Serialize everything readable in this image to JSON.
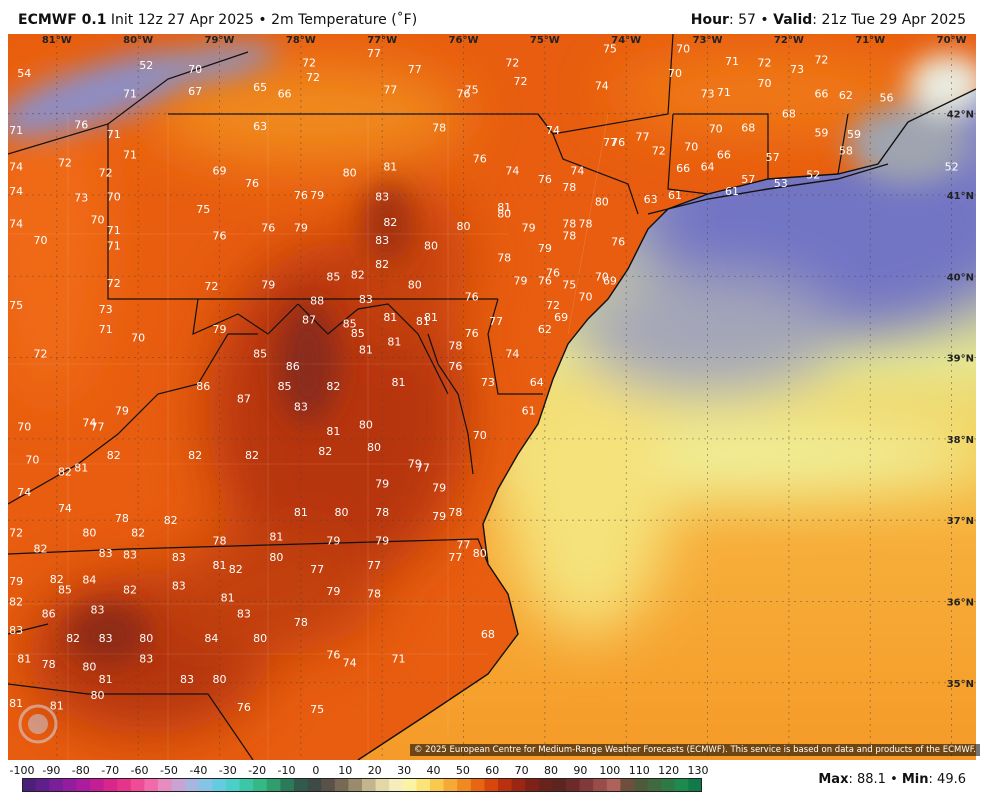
{
  "header": {
    "model": "ECMWF 0.1",
    "init": " Init 12z 27 Apr 2025",
    "product": "2m Temperature (˚F)",
    "hour_label": "Hour",
    "hour_value": "57",
    "valid_label": "Valid",
    "valid_value": "21z Tue 29 Apr 2025"
  },
  "lon_labels": [
    "81°W",
    "80°W",
    "79°W",
    "78°W",
    "77°W",
    "76°W",
    "75°W",
    "74°W",
    "73°W",
    "72°W",
    "71°W",
    "70°W"
  ],
  "lat_labels": [
    "42°N",
    "41°N",
    "40°N",
    "39°N",
    "38°N",
    "37°N",
    "36°N",
    "35°N"
  ],
  "temperatures": [
    {
      "v": 54,
      "lon": -81.4,
      "lat": 42.45
    },
    {
      "v": 52,
      "lon": -79.9,
      "lat": 42.55
    },
    {
      "v": 71,
      "lon": -80.1,
      "lat": 42.2
    },
    {
      "v": 70,
      "lon": -79.3,
      "lat": 42.5
    },
    {
      "v": 67,
      "lon": -79.3,
      "lat": 42.23
    },
    {
      "v": 65,
      "lon": -78.5,
      "lat": 42.28
    },
    {
      "v": 66,
      "lon": -78.2,
      "lat": 42.2
    },
    {
      "v": 72,
      "lon": -77.9,
      "lat": 42.58
    },
    {
      "v": 72,
      "lon": -77.85,
      "lat": 42.4
    },
    {
      "v": 77,
      "lon": -77.1,
      "lat": 42.7
    },
    {
      "v": 77,
      "lon": -76.6,
      "lat": 42.5
    },
    {
      "v": 77,
      "lon": -76.9,
      "lat": 42.25
    },
    {
      "v": 76,
      "lon": -76.0,
      "lat": 42.2
    },
    {
      "v": 75,
      "lon": -75.9,
      "lat": 42.25
    },
    {
      "v": 72,
      "lon": -75.4,
      "lat": 42.58
    },
    {
      "v": 72,
      "lon": -75.3,
      "lat": 42.35
    },
    {
      "v": 75,
      "lon": -74.2,
      "lat": 42.75
    },
    {
      "v": 74,
      "lon": -74.3,
      "lat": 42.3
    },
    {
      "v": 70,
      "lon": -73.3,
      "lat": 42.75
    },
    {
      "v": 70,
      "lon": -73.4,
      "lat": 42.45
    },
    {
      "v": 71,
      "lon": -72.7,
      "lat": 42.6
    },
    {
      "v": 72,
      "lon": -72.3,
      "lat": 42.58
    },
    {
      "v": 73,
      "lon": -71.9,
      "lat": 42.5
    },
    {
      "v": 72,
      "lon": -71.6,
      "lat": 42.62
    },
    {
      "v": 73,
      "lon": -73.0,
      "lat": 42.2
    },
    {
      "v": 71,
      "lon": -72.8,
      "lat": 42.22
    },
    {
      "v": 70,
      "lon": -72.3,
      "lat": 42.33
    },
    {
      "v": 66,
      "lon": -71.6,
      "lat": 42.2
    },
    {
      "v": 62,
      "lon": -71.3,
      "lat": 42.18
    },
    {
      "v": 56,
      "lon": -70.8,
      "lat": 42.15
    },
    {
      "v": 76,
      "lon": -80.7,
      "lat": 41.82
    },
    {
      "v": 71,
      "lon": -81.5,
      "lat": 41.75
    },
    {
      "v": 71,
      "lon": -80.3,
      "lat": 41.7
    },
    {
      "v": 63,
      "lon": -78.5,
      "lat": 41.8
    },
    {
      "v": 78,
      "lon": -76.3,
      "lat": 41.78
    },
    {
      "v": 74,
      "lon": -74.9,
      "lat": 41.75
    },
    {
      "v": 77,
      "lon": -74.2,
      "lat": 41.6
    },
    {
      "v": 76,
      "lon": -74.1,
      "lat": 41.6
    },
    {
      "v": 77,
      "lon": -73.8,
      "lat": 41.67
    },
    {
      "v": 70,
      "lon": -72.9,
      "lat": 41.77
    },
    {
      "v": 68,
      "lon": -72.5,
      "lat": 41.78
    },
    {
      "v": 68,
      "lon": -72.0,
      "lat": 41.95
    },
    {
      "v": 59,
      "lon": -71.6,
      "lat": 41.72
    },
    {
      "v": 59,
      "lon": -71.2,
      "lat": 41.7
    },
    {
      "v": 72,
      "lon": -73.6,
      "lat": 41.5
    },
    {
      "v": 70,
      "lon": -73.2,
      "lat": 41.55
    },
    {
      "v": 66,
      "lon": -72.8,
      "lat": 41.45
    },
    {
      "v": 57,
      "lon": -72.2,
      "lat": 41.42
    },
    {
      "v": 58,
      "lon": -71.3,
      "lat": 41.5
    },
    {
      "v": 52,
      "lon": -70.0,
      "lat": 41.3
    },
    {
      "v": 74,
      "lon": -81.5,
      "lat": 41.3
    },
    {
      "v": 72,
      "lon": -80.9,
      "lat": 41.35
    },
    {
      "v": 72,
      "lon": -80.4,
      "lat": 41.23
    },
    {
      "v": 71,
      "lon": -80.1,
      "lat": 41.45
    },
    {
      "v": 69,
      "lon": -79.0,
      "lat": 41.25
    },
    {
      "v": 80,
      "lon": -77.4,
      "lat": 41.23
    },
    {
      "v": 81,
      "lon": -76.9,
      "lat": 41.3
    },
    {
      "v": 76,
      "lon": -75.8,
      "lat": 41.4
    },
    {
      "v": 74,
      "lon": -75.4,
      "lat": 41.25
    },
    {
      "v": 74,
      "lon": -74.6,
      "lat": 41.25
    },
    {
      "v": 76,
      "lon": -75.0,
      "lat": 41.15
    },
    {
      "v": 66,
      "lon": -73.3,
      "lat": 41.28
    },
    {
      "v": 64,
      "lon": -73.0,
      "lat": 41.3
    },
    {
      "v": 57,
      "lon": -72.5,
      "lat": 41.15
    },
    {
      "v": 53,
      "lon": -72.1,
      "lat": 41.1
    },
    {
      "v": 52,
      "lon": -71.7,
      "lat": 41.2
    },
    {
      "v": 74,
      "lon": -81.5,
      "lat": 41.0
    },
    {
      "v": 73,
      "lon": -80.7,
      "lat": 40.92
    },
    {
      "v": 70,
      "lon": -80.3,
      "lat": 40.93
    },
    {
      "v": 76,
      "lon": -78.6,
      "lat": 41.1
    },
    {
      "v": 76,
      "lon": -78.0,
      "lat": 40.95
    },
    {
      "v": 79,
      "lon": -77.8,
      "lat": 40.95
    },
    {
      "v": 83,
      "lon": -77.0,
      "lat": 40.93
    },
    {
      "v": 78,
      "lon": -74.7,
      "lat": 41.05
    },
    {
      "v": 80,
      "lon": -74.3,
      "lat": 40.87
    },
    {
      "v": 81,
      "lon": -75.5,
      "lat": 40.8
    },
    {
      "v": 80,
      "lon": -75.5,
      "lat": 40.72
    },
    {
      "v": 63,
      "lon": -73.7,
      "lat": 40.9
    },
    {
      "v": 61,
      "lon": -73.4,
      "lat": 40.95
    },
    {
      "v": 61,
      "lon": -72.7,
      "lat": 41.0
    },
    {
      "v": 75,
      "lon": -79.2,
      "lat": 40.78
    },
    {
      "v": 74,
      "lon": -81.5,
      "lat": 40.6
    },
    {
      "v": 70,
      "lon": -80.5,
      "lat": 40.65
    },
    {
      "v": 71,
      "lon": -80.3,
      "lat": 40.52
    },
    {
      "v": 76,
      "lon": -78.4,
      "lat": 40.55
    },
    {
      "v": 79,
      "lon": -78.0,
      "lat": 40.55
    },
    {
      "v": 82,
      "lon": -76.9,
      "lat": 40.62
    },
    {
      "v": 80,
      "lon": -76.0,
      "lat": 40.57
    },
    {
      "v": 79,
      "lon": -75.2,
      "lat": 40.55
    },
    {
      "v": 78,
      "lon": -74.7,
      "lat": 40.6
    },
    {
      "v": 78,
      "lon": -74.5,
      "lat": 40.6
    },
    {
      "v": 70,
      "lon": -81.2,
      "lat": 40.4
    },
    {
      "v": 71,
      "lon": -80.3,
      "lat": 40.33
    },
    {
      "v": 76,
      "lon": -79.0,
      "lat": 40.45
    },
    {
      "v": 83,
      "lon": -77.0,
      "lat": 40.4
    },
    {
      "v": 80,
      "lon": -76.4,
      "lat": 40.33
    },
    {
      "v": 78,
      "lon": -75.5,
      "lat": 40.18
    },
    {
      "v": 79,
      "lon": -75.0,
      "lat": 40.3
    },
    {
      "v": 78,
      "lon": -74.7,
      "lat": 40.45
    },
    {
      "v": 76,
      "lon": -74.1,
      "lat": 40.38
    },
    {
      "v": 76,
      "lon": -74.9,
      "lat": 40.0
    },
    {
      "v": 82,
      "lon": -77.0,
      "lat": 40.1
    },
    {
      "v": 85,
      "lon": -77.6,
      "lat": 39.95
    },
    {
      "v": 82,
      "lon": -77.3,
      "lat": 39.97
    },
    {
      "v": 79,
      "lon": -75.3,
      "lat": 39.9
    },
    {
      "v": 76,
      "lon": -75.0,
      "lat": 39.9
    },
    {
      "v": 75,
      "lon": -74.7,
      "lat": 39.85
    },
    {
      "v": 70,
      "lon": -74.3,
      "lat": 39.95
    },
    {
      "v": 69,
      "lon": -74.2,
      "lat": 39.9
    },
    {
      "v": 72,
      "lon": -80.3,
      "lat": 39.87
    },
    {
      "v": 72,
      "lon": -79.1,
      "lat": 39.83
    },
    {
      "v": 79,
      "lon": -78.4,
      "lat": 39.85
    },
    {
      "v": 80,
      "lon": -76.6,
      "lat": 39.85
    },
    {
      "v": 75,
      "lon": -81.5,
      "lat": 39.6
    },
    {
      "v": 73,
      "lon": -80.4,
      "lat": 39.55
    },
    {
      "v": 88,
      "lon": -77.8,
      "lat": 39.65
    },
    {
      "v": 83,
      "lon": -77.2,
      "lat": 39.67
    },
    {
      "v": 76,
      "lon": -75.9,
      "lat": 39.7
    },
    {
      "v": 72,
      "lon": -74.9,
      "lat": 39.6
    },
    {
      "v": 70,
      "lon": -74.5,
      "lat": 39.7
    },
    {
      "v": 87,
      "lon": -77.9,
      "lat": 39.42
    },
    {
      "v": 85,
      "lon": -77.4,
      "lat": 39.37
    },
    {
      "v": 85,
      "lon": -77.3,
      "lat": 39.25
    },
    {
      "v": 81,
      "lon": -76.9,
      "lat": 39.45
    },
    {
      "v": 81,
      "lon": -76.5,
      "lat": 39.4
    },
    {
      "v": 81,
      "lon": -76.4,
      "lat": 39.45
    },
    {
      "v": 77,
      "lon": -75.6,
      "lat": 39.4
    },
    {
      "v": 69,
      "lon": -74.8,
      "lat": 39.45
    },
    {
      "v": 62,
      "lon": -75.0,
      "lat": 39.3
    },
    {
      "v": 71,
      "lon": -80.4,
      "lat": 39.3
    },
    {
      "v": 70,
      "lon": -80.0,
      "lat": 39.2
    },
    {
      "v": 79,
      "lon": -79.0,
      "lat": 39.3
    },
    {
      "v": 76,
      "lon": -75.9,
      "lat": 39.25
    },
    {
      "v": 78,
      "lon": -76.1,
      "lat": 39.1
    },
    {
      "v": 81,
      "lon": -76.85,
      "lat": 39.15
    },
    {
      "v": 81,
      "lon": -77.2,
      "lat": 39.05
    },
    {
      "v": 72,
      "lon": -81.2,
      "lat": 39.0
    },
    {
      "v": 85,
      "lon": -78.5,
      "lat": 39.0
    },
    {
      "v": 86,
      "lon": -78.1,
      "lat": 38.85
    },
    {
      "v": 76,
      "lon": -76.1,
      "lat": 38.85
    },
    {
      "v": 74,
      "lon": -75.4,
      "lat": 39.0
    },
    {
      "v": 86,
      "lon": -79.2,
      "lat": 38.6
    },
    {
      "v": 85,
      "lon": -78.2,
      "lat": 38.6
    },
    {
      "v": 82,
      "lon": -77.6,
      "lat": 38.6
    },
    {
      "v": 81,
      "lon": -76.8,
      "lat": 38.65
    },
    {
      "v": 73,
      "lon": -75.7,
      "lat": 38.65
    },
    {
      "v": 64,
      "lon": -75.1,
      "lat": 38.65
    },
    {
      "v": 87,
      "lon": -78.7,
      "lat": 38.45
    },
    {
      "v": 83,
      "lon": -78.0,
      "lat": 38.35
    },
    {
      "v": 79,
      "lon": -80.2,
      "lat": 38.3
    },
    {
      "v": 61,
      "lon": -75.2,
      "lat": 38.3
    },
    {
      "v": 70,
      "lon": -81.4,
      "lat": 38.1
    },
    {
      "v": 74,
      "lon": -80.6,
      "lat": 38.15
    },
    {
      "v": 77,
      "lon": -80.5,
      "lat": 38.1
    },
    {
      "v": 81,
      "lon": -77.6,
      "lat": 38.05
    },
    {
      "v": 80,
      "lon": -77.2,
      "lat": 38.13
    },
    {
      "v": 70,
      "lon": -75.8,
      "lat": 38.0
    },
    {
      "v": 82,
      "lon": -80.3,
      "lat": 37.75
    },
    {
      "v": 82,
      "lon": -79.3,
      "lat": 37.75
    },
    {
      "v": 82,
      "lon": -78.6,
      "lat": 37.75
    },
    {
      "v": 82,
      "lon": -77.7,
      "lat": 37.8
    },
    {
      "v": 80,
      "lon": -77.1,
      "lat": 37.85
    },
    {
      "v": 79,
      "lon": -76.6,
      "lat": 37.65
    },
    {
      "v": 77,
      "lon": -76.5,
      "lat": 37.6
    },
    {
      "v": 70,
      "lon": -81.3,
      "lat": 37.7
    },
    {
      "v": 82,
      "lon": -80.9,
      "lat": 37.55
    },
    {
      "v": 81,
      "lon": -80.7,
      "lat": 37.6
    },
    {
      "v": 79,
      "lon": -77.0,
      "lat": 37.4
    },
    {
      "v": 79,
      "lon": -76.3,
      "lat": 37.35
    },
    {
      "v": 74,
      "lon": -81.4,
      "lat": 37.3
    },
    {
      "v": 74,
      "lon": -80.9,
      "lat": 37.1
    },
    {
      "v": 81,
      "lon": -78.0,
      "lat": 37.05
    },
    {
      "v": 80,
      "lon": -77.5,
      "lat": 37.05
    },
    {
      "v": 78,
      "lon": -77.0,
      "lat": 37.05
    },
    {
      "v": 79,
      "lon": -76.3,
      "lat": 37.0
    },
    {
      "v": 78,
      "lon": -76.1,
      "lat": 37.05
    },
    {
      "v": 78,
      "lon": -80.2,
      "lat": 36.98
    },
    {
      "v": 82,
      "lon": -79.6,
      "lat": 36.95
    },
    {
      "v": 72,
      "lon": -81.5,
      "lat": 36.8
    },
    {
      "v": 80,
      "lon": -80.6,
      "lat": 36.8
    },
    {
      "v": 82,
      "lon": -80.0,
      "lat": 36.8
    },
    {
      "v": 78,
      "lon": -79.0,
      "lat": 36.7
    },
    {
      "v": 81,
      "lon": -78.3,
      "lat": 36.75
    },
    {
      "v": 79,
      "lon": -77.6,
      "lat": 36.7
    },
    {
      "v": 79,
      "lon": -77.0,
      "lat": 36.7
    },
    {
      "v": 77,
      "lon": -76.0,
      "lat": 36.65
    },
    {
      "v": 82,
      "lon": -81.2,
      "lat": 36.6
    },
    {
      "v": 83,
      "lon": -80.4,
      "lat": 36.55
    },
    {
      "v": 83,
      "lon": -80.1,
      "lat": 36.53
    },
    {
      "v": 83,
      "lon": -79.5,
      "lat": 36.5
    },
    {
      "v": 81,
      "lon": -79.0,
      "lat": 36.4
    },
    {
      "v": 82,
      "lon": -78.8,
      "lat": 36.35
    },
    {
      "v": 80,
      "lon": -78.3,
      "lat": 36.5
    },
    {
      "v": 77,
      "lon": -77.8,
      "lat": 36.35
    },
    {
      "v": 77,
      "lon": -77.1,
      "lat": 36.4
    },
    {
      "v": 77,
      "lon": -76.1,
      "lat": 36.5
    },
    {
      "v": 79,
      "lon": -81.5,
      "lat": 36.2
    },
    {
      "v": 82,
      "lon": -81.0,
      "lat": 36.23
    },
    {
      "v": 85,
      "lon": -80.9,
      "lat": 36.1
    },
    {
      "v": 84,
      "lon": -80.6,
      "lat": 36.22
    },
    {
      "v": 82,
      "lon": -80.1,
      "lat": 36.1
    },
    {
      "v": 83,
      "lon": -79.5,
      "lat": 36.15
    },
    {
      "v": 81,
      "lon": -78.9,
      "lat": 36.0
    },
    {
      "v": 79,
      "lon": -77.6,
      "lat": 36.08
    },
    {
      "v": 78,
      "lon": -77.1,
      "lat": 36.05
    },
    {
      "v": 80,
      "lon": -75.8,
      "lat": 36.55
    },
    {
      "v": 82,
      "lon": -81.5,
      "lat": 35.95
    },
    {
      "v": 86,
      "lon": -81.1,
      "lat": 35.8
    },
    {
      "v": 83,
      "lon": -80.5,
      "lat": 35.85
    },
    {
      "v": 83,
      "lon": -78.7,
      "lat": 35.8
    },
    {
      "v": 78,
      "lon": -78.0,
      "lat": 35.7
    },
    {
      "v": 83,
      "lon": -81.5,
      "lat": 35.6
    },
    {
      "v": 82,
      "lon": -80.8,
      "lat": 35.5
    },
    {
      "v": 83,
      "lon": -80.4,
      "lat": 35.5
    },
    {
      "v": 80,
      "lon": -79.9,
      "lat": 35.5
    },
    {
      "v": 84,
      "lon": -79.1,
      "lat": 35.5
    },
    {
      "v": 80,
      "lon": -78.5,
      "lat": 35.5
    },
    {
      "v": 68,
      "lon": -75.7,
      "lat": 35.55
    },
    {
      "v": 81,
      "lon": -81.4,
      "lat": 35.25
    },
    {
      "v": 78,
      "lon": -81.1,
      "lat": 35.18
    },
    {
      "v": 83,
      "lon": -79.9,
      "lat": 35.25
    },
    {
      "v": 76,
      "lon": -77.6,
      "lat": 35.3
    },
    {
      "v": 74,
      "lon": -77.4,
      "lat": 35.2
    },
    {
      "v": 71,
      "lon": -76.8,
      "lat": 35.25
    },
    {
      "v": 80,
      "lon": -80.6,
      "lat": 35.15
    },
    {
      "v": 81,
      "lon": -80.4,
      "lat": 35.0
    },
    {
      "v": 83,
      "lon": -79.4,
      "lat": 35.0
    },
    {
      "v": 80,
      "lon": -79.0,
      "lat": 35.0
    },
    {
      "v": 81,
      "lon": -81.5,
      "lat": 34.7
    },
    {
      "v": 81,
      "lon": -81.0,
      "lat": 34.67
    },
    {
      "v": 80,
      "lon": -80.5,
      "lat": 34.8
    },
    {
      "v": 76,
      "lon": -78.7,
      "lat": 34.65
    },
    {
      "v": 75,
      "lon": -77.8,
      "lat": 34.63
    }
  ],
  "colorbar": {
    "labels": [
      "-100",
      "-90",
      "-80",
      "-70",
      "-60",
      "-50",
      "-40",
      "-30",
      "-20",
      "-10",
      "0",
      "10",
      "20",
      "30",
      "40",
      "50",
      "60",
      "70",
      "80",
      "90",
      "100",
      "110",
      "120",
      "130"
    ],
    "min": -100,
    "max": 130
  },
  "stats": {
    "max_label": "Max",
    "max_value": "88.1",
    "min_label": "Min",
    "min_value": "49.6"
  },
  "copyright": "© 2025 European Centre for Medium-Range Weather Forecasts (ECMWF). This service is based on data and products of the ECMWF."
}
